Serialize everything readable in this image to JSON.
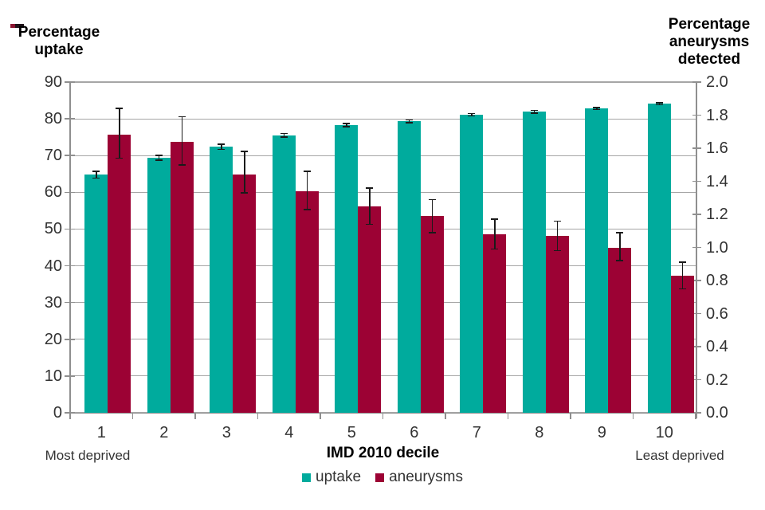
{
  "chart_data": {
    "type": "bar",
    "title": "",
    "xlabel": "IMD 2010 decile",
    "x_left_note": "Most deprived",
    "x_right_note": "Least deprived",
    "grid": true,
    "legend_position": "bottom",
    "categories": [
      "1",
      "2",
      "3",
      "4",
      "5",
      "6",
      "7",
      "8",
      "9",
      "10"
    ],
    "left_axis": {
      "title_lines": [
        "Percentage",
        "uptake"
      ],
      "min": 0,
      "max": 90,
      "tick_labels": [
        "90",
        "80",
        "70",
        "60",
        "50",
        "40",
        "30",
        "20",
        "10",
        "0"
      ]
    },
    "right_axis": {
      "title_lines": [
        "Percentage",
        "aneurysms",
        "detected"
      ],
      "min": 0,
      "max": 2.0,
      "tick_labels": [
        "2.0",
        "1.8",
        "1.6",
        "1.4",
        "1.2",
        "1.0",
        "0.8",
        "0.6",
        "0.4",
        "0.2",
        "0.0"
      ]
    },
    "series": [
      {
        "name": "uptake",
        "axis": "left",
        "color": "#00AB9D",
        "values": [
          64.8,
          69.4,
          72.4,
          75.5,
          78.3,
          79.3,
          81.1,
          81.9,
          82.8,
          84.1
        ],
        "err_up": [
          0.9,
          0.6,
          0.7,
          0.5,
          0.4,
          0.35,
          0.35,
          0.4,
          0.3,
          0.3
        ],
        "err_down": [
          0.9,
          0.6,
          0.7,
          0.5,
          0.4,
          0.35,
          0.35,
          0.4,
          0.3,
          0.3
        ]
      },
      {
        "name": "aneurysms",
        "axis": "right",
        "color": "#9C0234",
        "values": [
          1.68,
          1.64,
          1.44,
          1.34,
          1.25,
          1.19,
          1.08,
          1.07,
          1.0,
          0.83
        ],
        "err_up": [
          0.16,
          0.15,
          0.14,
          0.12,
          0.11,
          0.1,
          0.09,
          0.09,
          0.09,
          0.08
        ],
        "err_down": [
          0.14,
          0.14,
          0.11,
          0.11,
          0.11,
          0.1,
          0.09,
          0.09,
          0.08,
          0.08
        ]
      }
    ],
    "legend": [
      "uptake",
      "aneurysms"
    ],
    "colors": {
      "gridline": "#a6a6a6",
      "axis": "#8f8f8f",
      "error_bar": "#1a1a1a",
      "text": "#333333"
    }
  }
}
